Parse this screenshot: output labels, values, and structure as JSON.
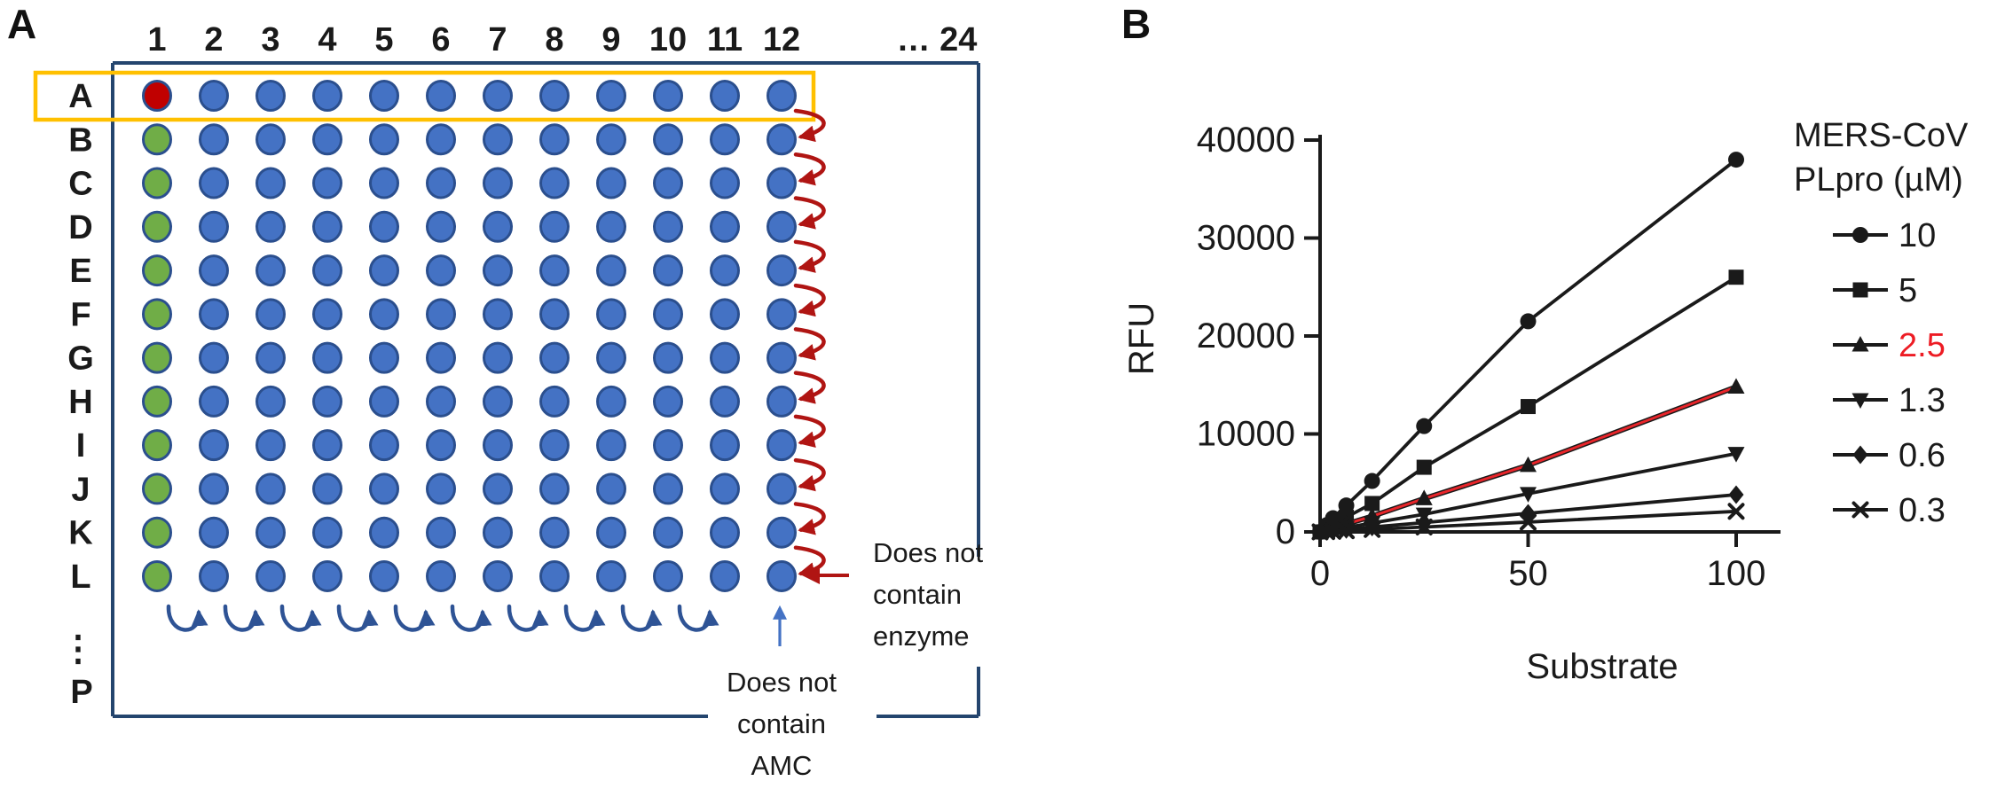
{
  "panelA": {
    "label": "A",
    "plate": {
      "column_labels": [
        "1",
        "2",
        "3",
        "4",
        "5",
        "6",
        "7",
        "8",
        "9",
        "10",
        "11",
        "12"
      ],
      "column_overflow_label": "… 24",
      "row_labels": [
        "A",
        "B",
        "C",
        "D",
        "E",
        "F",
        "G",
        "H",
        "I",
        "J",
        "K",
        "L"
      ],
      "row_ellipsis_label": "⋮",
      "last_row_label": "P",
      "grid": [
        "rbbbbbbbbbbb",
        "gbbbbbbbbbbb",
        "gbbbbbbbbbbb",
        "gbbbbbbbbbbb",
        "gbbbbbbbbbbb",
        "gbbbbbbbbbbb",
        "gbbbbbbbbbbb",
        "gbbbbbbbbbbb",
        "gbbbbbbbbbbb",
        "gbbbbbbbbbbb",
        "gbbbbbbbbbbb",
        "gbbbbbbbbbbb"
      ],
      "well_colors": {
        "b": "#4472c4",
        "g": "#70ad47",
        "r": "#c00000",
        "well_border": "#2b4f8e"
      }
    },
    "colors": {
      "plate_border": "#24456e",
      "highlight_box": "#ffc000",
      "row_arrow": "#b01513",
      "col_arrow": "#2e5395",
      "enzyme_arrow": "#b01513",
      "amc_arrow": "#4472c4",
      "text": "#1a1a1a"
    },
    "annotations": {
      "no_enzyme": {
        "lines": [
          "Does not",
          "contain",
          "enzyme"
        ]
      },
      "no_amc": {
        "lines": [
          "Does not",
          "contain",
          "AMC"
        ]
      }
    }
  },
  "panelB": {
    "label": "B"
  },
  "chart_data": {
    "type": "line",
    "title": "",
    "xlabel": "Substrate",
    "ylabel": "RFU",
    "x": [
      0,
      1.6,
      3.1,
      6.3,
      12.5,
      25,
      50,
      100
    ],
    "x_ticks": [
      0,
      50,
      100
    ],
    "y_ticks": [
      0,
      10000,
      20000,
      30000,
      40000
    ],
    "xlim": [
      0,
      110
    ],
    "ylim": [
      0,
      40000
    ],
    "grid": false,
    "legend_position": "right",
    "legend_title_lines": [
      "MERS-CoV",
      "PLpro (µM)"
    ],
    "axis_color": "#1a1a1a",
    "series": [
      {
        "name": "10",
        "marker": "circle",
        "line_color": "#1a1a1a",
        "label_color": "#1a1a1a",
        "values": [
          0,
          700,
          1400,
          2700,
          5200,
          10800,
          21500,
          38000
        ]
      },
      {
        "name": "5",
        "marker": "square",
        "line_color": "#1a1a1a",
        "label_color": "#1a1a1a",
        "values": [
          0,
          400,
          800,
          1500,
          2900,
          6600,
          12800,
          26000
        ]
      },
      {
        "name": "2.5",
        "marker": "triangle-up",
        "line_color": "#e8252a",
        "label_color": "#ed1c24",
        "line_under_color": "#1a1a1a",
        "values": [
          0,
          200,
          400,
          800,
          1600,
          3400,
          6800,
          14800
        ]
      },
      {
        "name": "1.3",
        "marker": "triangle-down",
        "line_color": "#1a1a1a",
        "label_color": "#1a1a1a",
        "values": [
          0,
          100,
          250,
          450,
          900,
          1800,
          3900,
          8000
        ]
      },
      {
        "name": "0.6",
        "marker": "diamond",
        "line_color": "#1a1a1a",
        "label_color": "#1a1a1a",
        "values": [
          0,
          60,
          120,
          250,
          500,
          950,
          1900,
          3800
        ]
      },
      {
        "name": "0.3",
        "marker": "x",
        "line_color": "#1a1a1a",
        "label_color": "#1a1a1a",
        "values": [
          0,
          30,
          60,
          120,
          250,
          500,
          1000,
          2100
        ]
      }
    ]
  }
}
